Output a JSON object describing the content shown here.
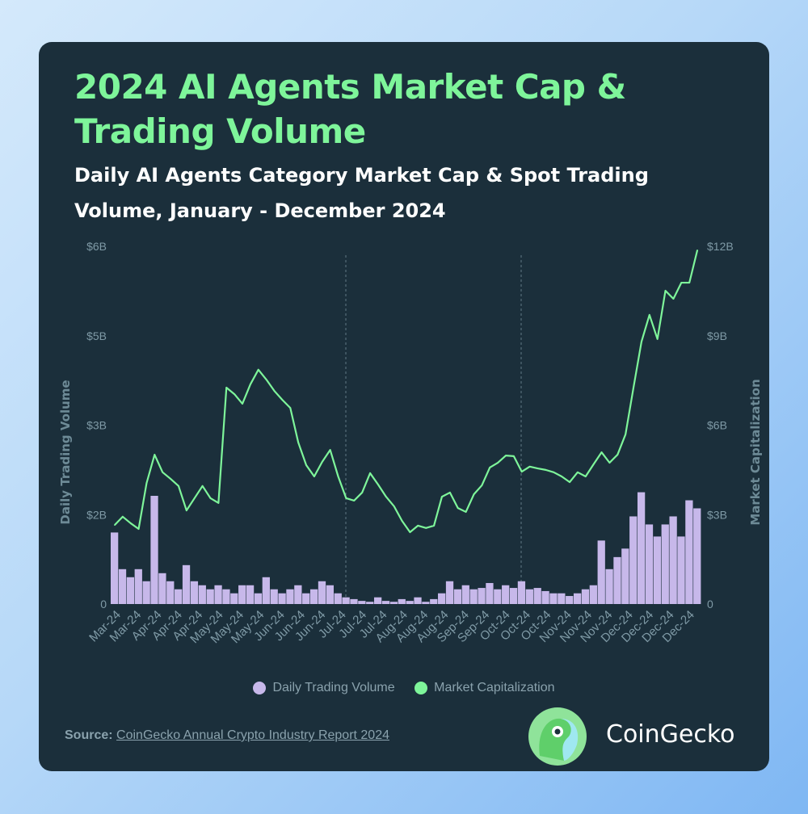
{
  "title": "2024 AI Agents Market Cap & Trading Volume",
  "subtitle": "Daily AI Agents Category Market Cap & Spot Trading Volume, January - December 2024",
  "source_label": "Source:",
  "source_link": "CoinGecko Annual Crypto Industry Report 2024",
  "brand": "CoinGecko",
  "colors": {
    "background_card": "#1b2f3b",
    "title": "#7ef59a",
    "volume": "#c7b8ea",
    "market_cap": "#7ef59a"
  },
  "chart_data": {
    "type": "bar+line",
    "title": "2024 AI Agents Market Cap & Trading Volume",
    "ylabel_left": "Daily Trading Volume",
    "ylabel_right": "Market Capitalization",
    "yticks_left": [
      "0",
      "$2B",
      "$3B",
      "$5B",
      "$6B"
    ],
    "yticks_right": [
      "0",
      "$3B",
      "$6B",
      "$9B",
      "$12B"
    ],
    "ylim_right_billions": [
      0,
      12
    ],
    "x_tick_labels": [
      "Mar-24",
      "Mar-24",
      "Apr-24",
      "Apr-24",
      "Apr-24",
      "May-24",
      "May-24",
      "May-24",
      "Jun-24",
      "Jun-24",
      "Jun-24",
      "Jul-24",
      "Jul-24",
      "Jul-24",
      "Aug-24",
      "Aug-24",
      "Aug-24",
      "Sep-24",
      "Sep-24",
      "Oct-24",
      "Oct-24",
      "Oct-24",
      "Nov-24",
      "Nov-24",
      "Nov-24",
      "Dec-24",
      "Dec-24",
      "Dec-24",
      "Dec-24"
    ],
    "grid": false,
    "legend_placement": "bottom",
    "series": [
      {
        "name": "Daily Trading Volume",
        "type": "bar",
        "axis": "left",
        "unit": "$B",
        "values": [
          1.6,
          0.78,
          0.6,
          0.78,
          0.51,
          2.21,
          0.69,
          0.51,
          0.33,
          0.87,
          0.51,
          0.42,
          0.33,
          0.42,
          0.33,
          0.24,
          0.42,
          0.42,
          0.24,
          0.6,
          0.33,
          0.24,
          0.33,
          0.42,
          0.24,
          0.33,
          0.51,
          0.42,
          0.24,
          0.15,
          0.11,
          0.07,
          0.05,
          0.15,
          0.07,
          0.05,
          0.11,
          0.07,
          0.15,
          0.05,
          0.11,
          0.24,
          0.51,
          0.33,
          0.42,
          0.33,
          0.36,
          0.47,
          0.33,
          0.42,
          0.36,
          0.51,
          0.33,
          0.36,
          0.29,
          0.24,
          0.24,
          0.18,
          0.24,
          0.33,
          0.42,
          1.42,
          0.78,
          1.05,
          1.24,
          1.96,
          2.25,
          1.78,
          1.51,
          1.78,
          1.96,
          1.51,
          2.16,
          2.07
        ]
      },
      {
        "name": "Market Capitalization",
        "type": "line",
        "axis": "right",
        "unit": "$B",
        "values": [
          2.65,
          2.93,
          2.71,
          2.52,
          4.06,
          5.01,
          4.42,
          4.2,
          3.96,
          3.14,
          3.55,
          3.96,
          3.55,
          3.39,
          7.26,
          7.04,
          6.72,
          7.37,
          7.86,
          7.53,
          7.15,
          6.85,
          6.58,
          5.42,
          4.66,
          4.28,
          4.77,
          5.17,
          4.28,
          3.55,
          3.47,
          3.74,
          4.39,
          4.01,
          3.6,
          3.28,
          2.79,
          2.41,
          2.63,
          2.55,
          2.63,
          3.6,
          3.74,
          3.22,
          3.09,
          3.68,
          3.98,
          4.58,
          4.74,
          4.98,
          4.96,
          4.44,
          4.61,
          4.55,
          4.5,
          4.42,
          4.28,
          4.09,
          4.42,
          4.28,
          4.69,
          5.09,
          4.74,
          5.01,
          5.69,
          7.26,
          8.8,
          9.7,
          8.89,
          10.51,
          10.24,
          10.78,
          10.78,
          11.87
        ]
      }
    ]
  }
}
